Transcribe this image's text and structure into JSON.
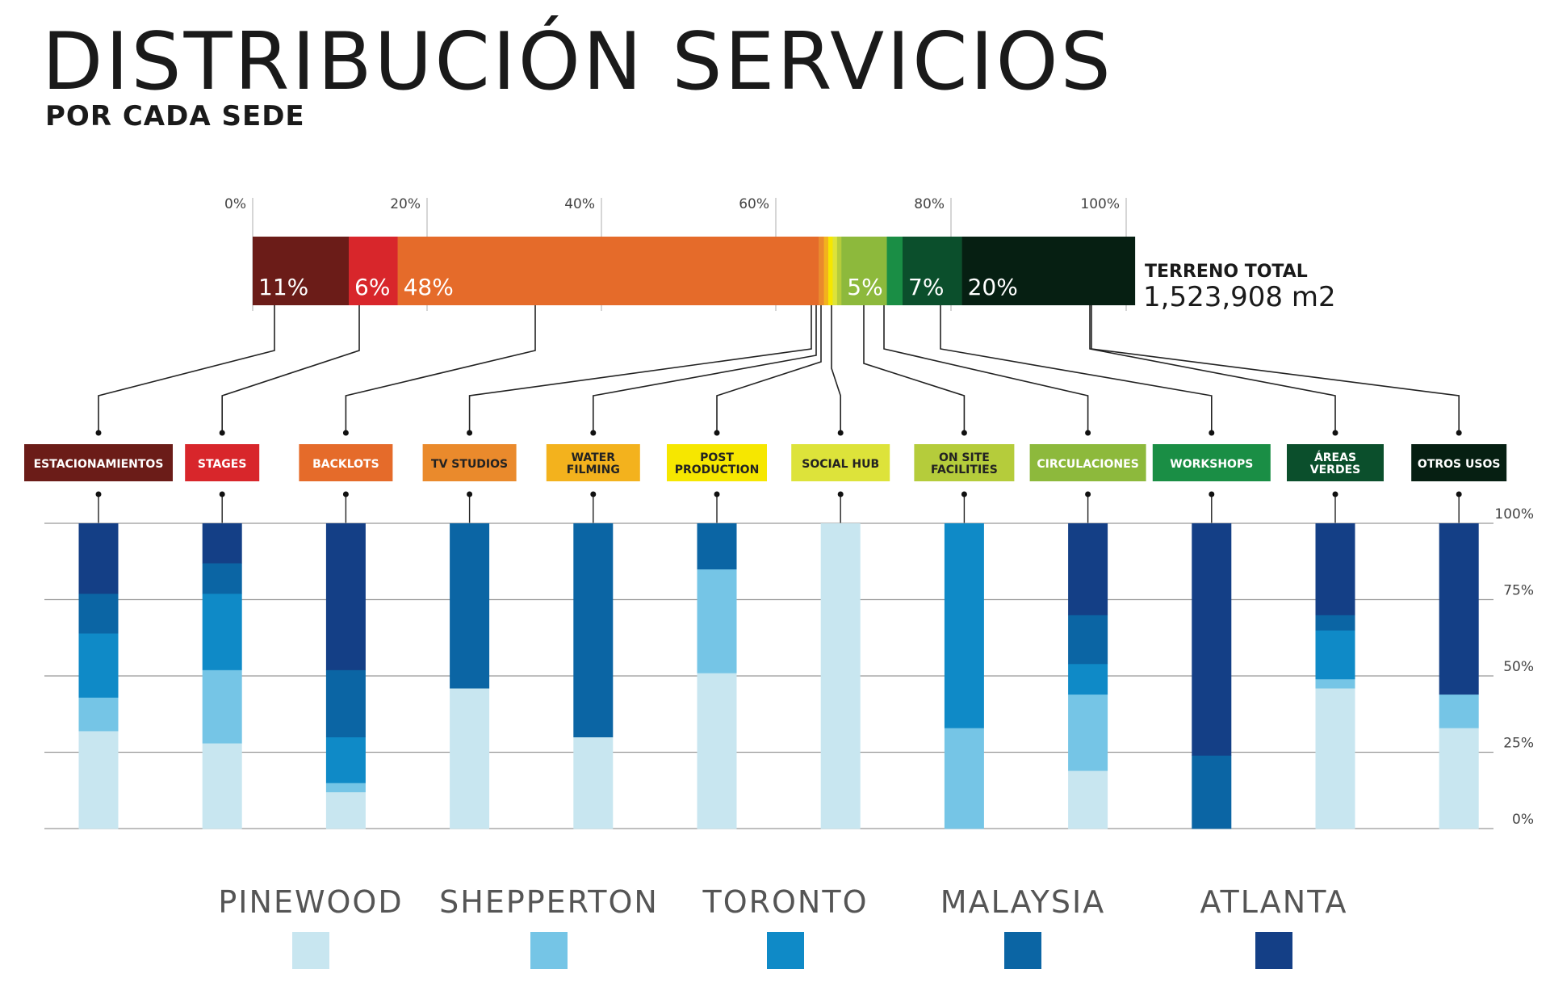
{
  "header": {
    "title": "DISTRIBUCIÓN SERVICIOS",
    "subtitle": "POR CADA SEDE"
  },
  "total": {
    "label": "TERRENO TOTAL",
    "value": "1,523,908 m2"
  },
  "chart_data": [
    {
      "type": "bar",
      "orientation": "horizontal-stacked-100",
      "x_ticks": [
        "0%",
        "20%",
        "40%",
        "60%",
        "80%",
        "100%"
      ],
      "xlim": [
        0,
        100
      ],
      "segments": [
        {
          "category": "ESTACIONAMIENTOS",
          "value": 11,
          "label": "11%",
          "color": "#6b1c18"
        },
        {
          "category": "STAGES",
          "value": 5.6,
          "label": "6%",
          "color": "#d8262b"
        },
        {
          "category": "BACKLOTS",
          "value": 48.2,
          "label": "48%",
          "color": "#e56b2a"
        },
        {
          "category": "TV STUDIOS",
          "value": 0.6,
          "label": "",
          "color": "#ea8a2c"
        },
        {
          "category": "WATER FILMING",
          "value": 0.5,
          "label": "",
          "color": "#f3b21d"
        },
        {
          "category": "POST PRODUCTION",
          "value": 0.5,
          "label": "",
          "color": "#f6e700"
        },
        {
          "category": "SOCIAL HUB",
          "value": 0.5,
          "label": "",
          "color": "#dde33a"
        },
        {
          "category": "ON SITE FACILITIES",
          "value": 0.5,
          "label": "",
          "color": "#b5cc3b"
        },
        {
          "category": "CIRCULACIONES",
          "value": 5.2,
          "label": "5%",
          "color": "#8db93c"
        },
        {
          "category": "WORKSHOPS",
          "value": 1.8,
          "label": "",
          "color": "#1a8e45"
        },
        {
          "category": "ÁREAS VERDES",
          "value": 6.8,
          "label": "7%",
          "color": "#0b4f2c"
        },
        {
          "category": "OTROS USOS",
          "value": 19.8,
          "label": "20%",
          "color": "#061f12"
        }
      ]
    },
    {
      "type": "bar",
      "orientation": "vertical-stacked-100",
      "y_ticks": [
        "100%",
        "75%",
        "50%",
        "25%",
        "0%"
      ],
      "ylim": [
        0,
        100
      ],
      "grid": true,
      "legend_position": "bottom",
      "series": [
        {
          "name": "PINEWOOD",
          "color": "#c8e6f0"
        },
        {
          "name": "SHEPPERTON",
          "color": "#75c5e6"
        },
        {
          "name": "TORONTO",
          "color": "#0f8ac7"
        },
        {
          "name": "MALAYSIA",
          "color": "#0b65a4"
        },
        {
          "name": "ATLANTA",
          "color": "#143f86"
        }
      ],
      "categories": [
        {
          "label": [
            "ESTACIONAMIENTOS"
          ],
          "bg": "#6b1c18",
          "fg": "#ffffff",
          "values": [
            32,
            11,
            21,
            13,
            23
          ]
        },
        {
          "label": [
            "STAGES"
          ],
          "bg": "#d8262b",
          "fg": "#ffffff",
          "values": [
            28,
            24,
            25,
            10,
            13
          ]
        },
        {
          "label": [
            "BACKLOTS"
          ],
          "bg": "#e56b2a",
          "fg": "#ffffff",
          "values": [
            12,
            3,
            15,
            22,
            48
          ]
        },
        {
          "label": [
            "TV STUDIOS"
          ],
          "bg": "#ea8a2c",
          "fg": "#222222",
          "values": [
            46,
            0,
            0,
            54,
            0
          ]
        },
        {
          "label": [
            "WATER",
            "FILMING"
          ],
          "bg": "#f3b21d",
          "fg": "#222222",
          "values": [
            30,
            0,
            0,
            70,
            0
          ]
        },
        {
          "label": [
            "POST",
            "PRODUCTION"
          ],
          "bg": "#f6e700",
          "fg": "#222222",
          "values": [
            51,
            34,
            0,
            15,
            0
          ]
        },
        {
          "label": [
            "SOCIAL HUB"
          ],
          "bg": "#dde33a",
          "fg": "#222222",
          "values": [
            100,
            0,
            0,
            0,
            0
          ]
        },
        {
          "label": [
            "ON SITE",
            "FACILITIES"
          ],
          "bg": "#b5cc3b",
          "fg": "#222222",
          "values": [
            0,
            33,
            67,
            0,
            0
          ]
        },
        {
          "label": [
            "CIRCULACIONES"
          ],
          "bg": "#8db93c",
          "fg": "#ffffff",
          "values": [
            19,
            25,
            10,
            16,
            30
          ]
        },
        {
          "label": [
            "WORKSHOPS"
          ],
          "bg": "#1a8e45",
          "fg": "#ffffff",
          "values": [
            0,
            0,
            0,
            24,
            76
          ]
        },
        {
          "label": [
            "ÁREAS",
            "VERDES"
          ],
          "bg": "#0b4f2c",
          "fg": "#ffffff",
          "values": [
            46,
            3,
            16,
            5,
            30
          ]
        },
        {
          "label": [
            "OTROS USOS"
          ],
          "bg": "#061f12",
          "fg": "#ffffff",
          "values": [
            33,
            11,
            0,
            0,
            56
          ]
        }
      ]
    }
  ]
}
